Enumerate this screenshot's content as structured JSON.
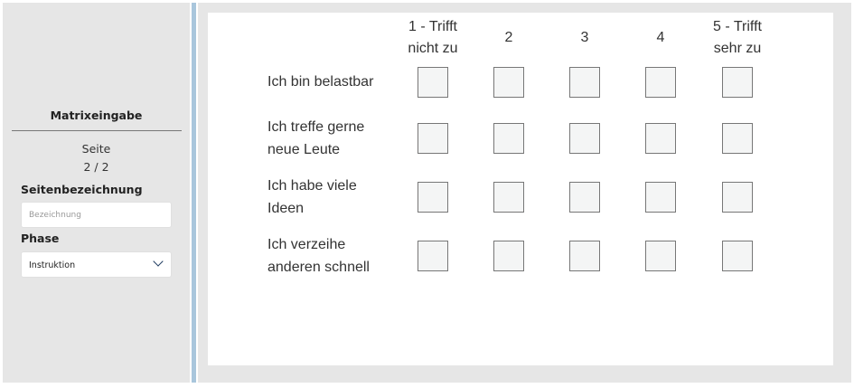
{
  "sidebar": {
    "title": "Matrixeingabe",
    "page_label": "Seite",
    "page_value": "2 / 2",
    "name_label": "Seitenbezeichnung",
    "name_placeholder": "Bezeichnung",
    "phase_label": "Phase",
    "phase_value": "Instruktion"
  },
  "matrix": {
    "columns": [
      "1 - Trifft\nnicht zu",
      "2",
      "3",
      "4",
      "5 - Trifft\nsehr zu"
    ],
    "rows": [
      "Ich bin belastbar",
      "Ich treffe gerne\nneue Leute",
      "Ich habe viele\nIdeen",
      "Ich verzeihe\nanderen schnell"
    ]
  }
}
